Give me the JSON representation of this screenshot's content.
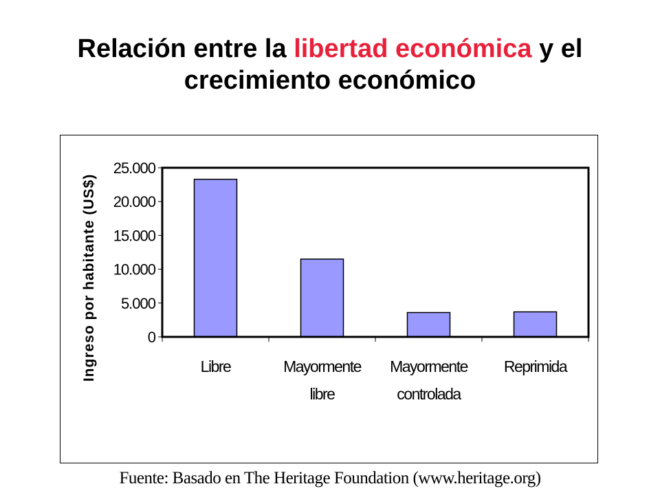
{
  "slide": {
    "title_part1": "Relación entre la ",
    "title_accent": "libertad económica",
    "title_part2": " y el",
    "title_line2": "crecimiento económico",
    "accent_color": "#e8203a",
    "source": "Fuente: Basado en The Heritage Foundation (www.heritage.org)"
  },
  "chart_data": {
    "type": "bar",
    "categories": [
      [
        "Libre"
      ],
      [
        "Mayormente",
        "libre"
      ],
      [
        "Mayormente",
        "controlada"
      ],
      [
        "Reprimida"
      ]
    ],
    "values": [
      23300,
      11500,
      3600,
      3700
    ],
    "ylabel": "Ingreso por habitante (US$)",
    "ylim": [
      0,
      25000
    ],
    "yticks": [
      0,
      5000,
      10000,
      15000,
      20000,
      25000
    ],
    "ytick_labels": [
      "0",
      "5.000",
      "10.000",
      "15.000",
      "20.000",
      "25.000"
    ],
    "bar_color": "#9999ff",
    "grid": false,
    "legend": "none"
  }
}
